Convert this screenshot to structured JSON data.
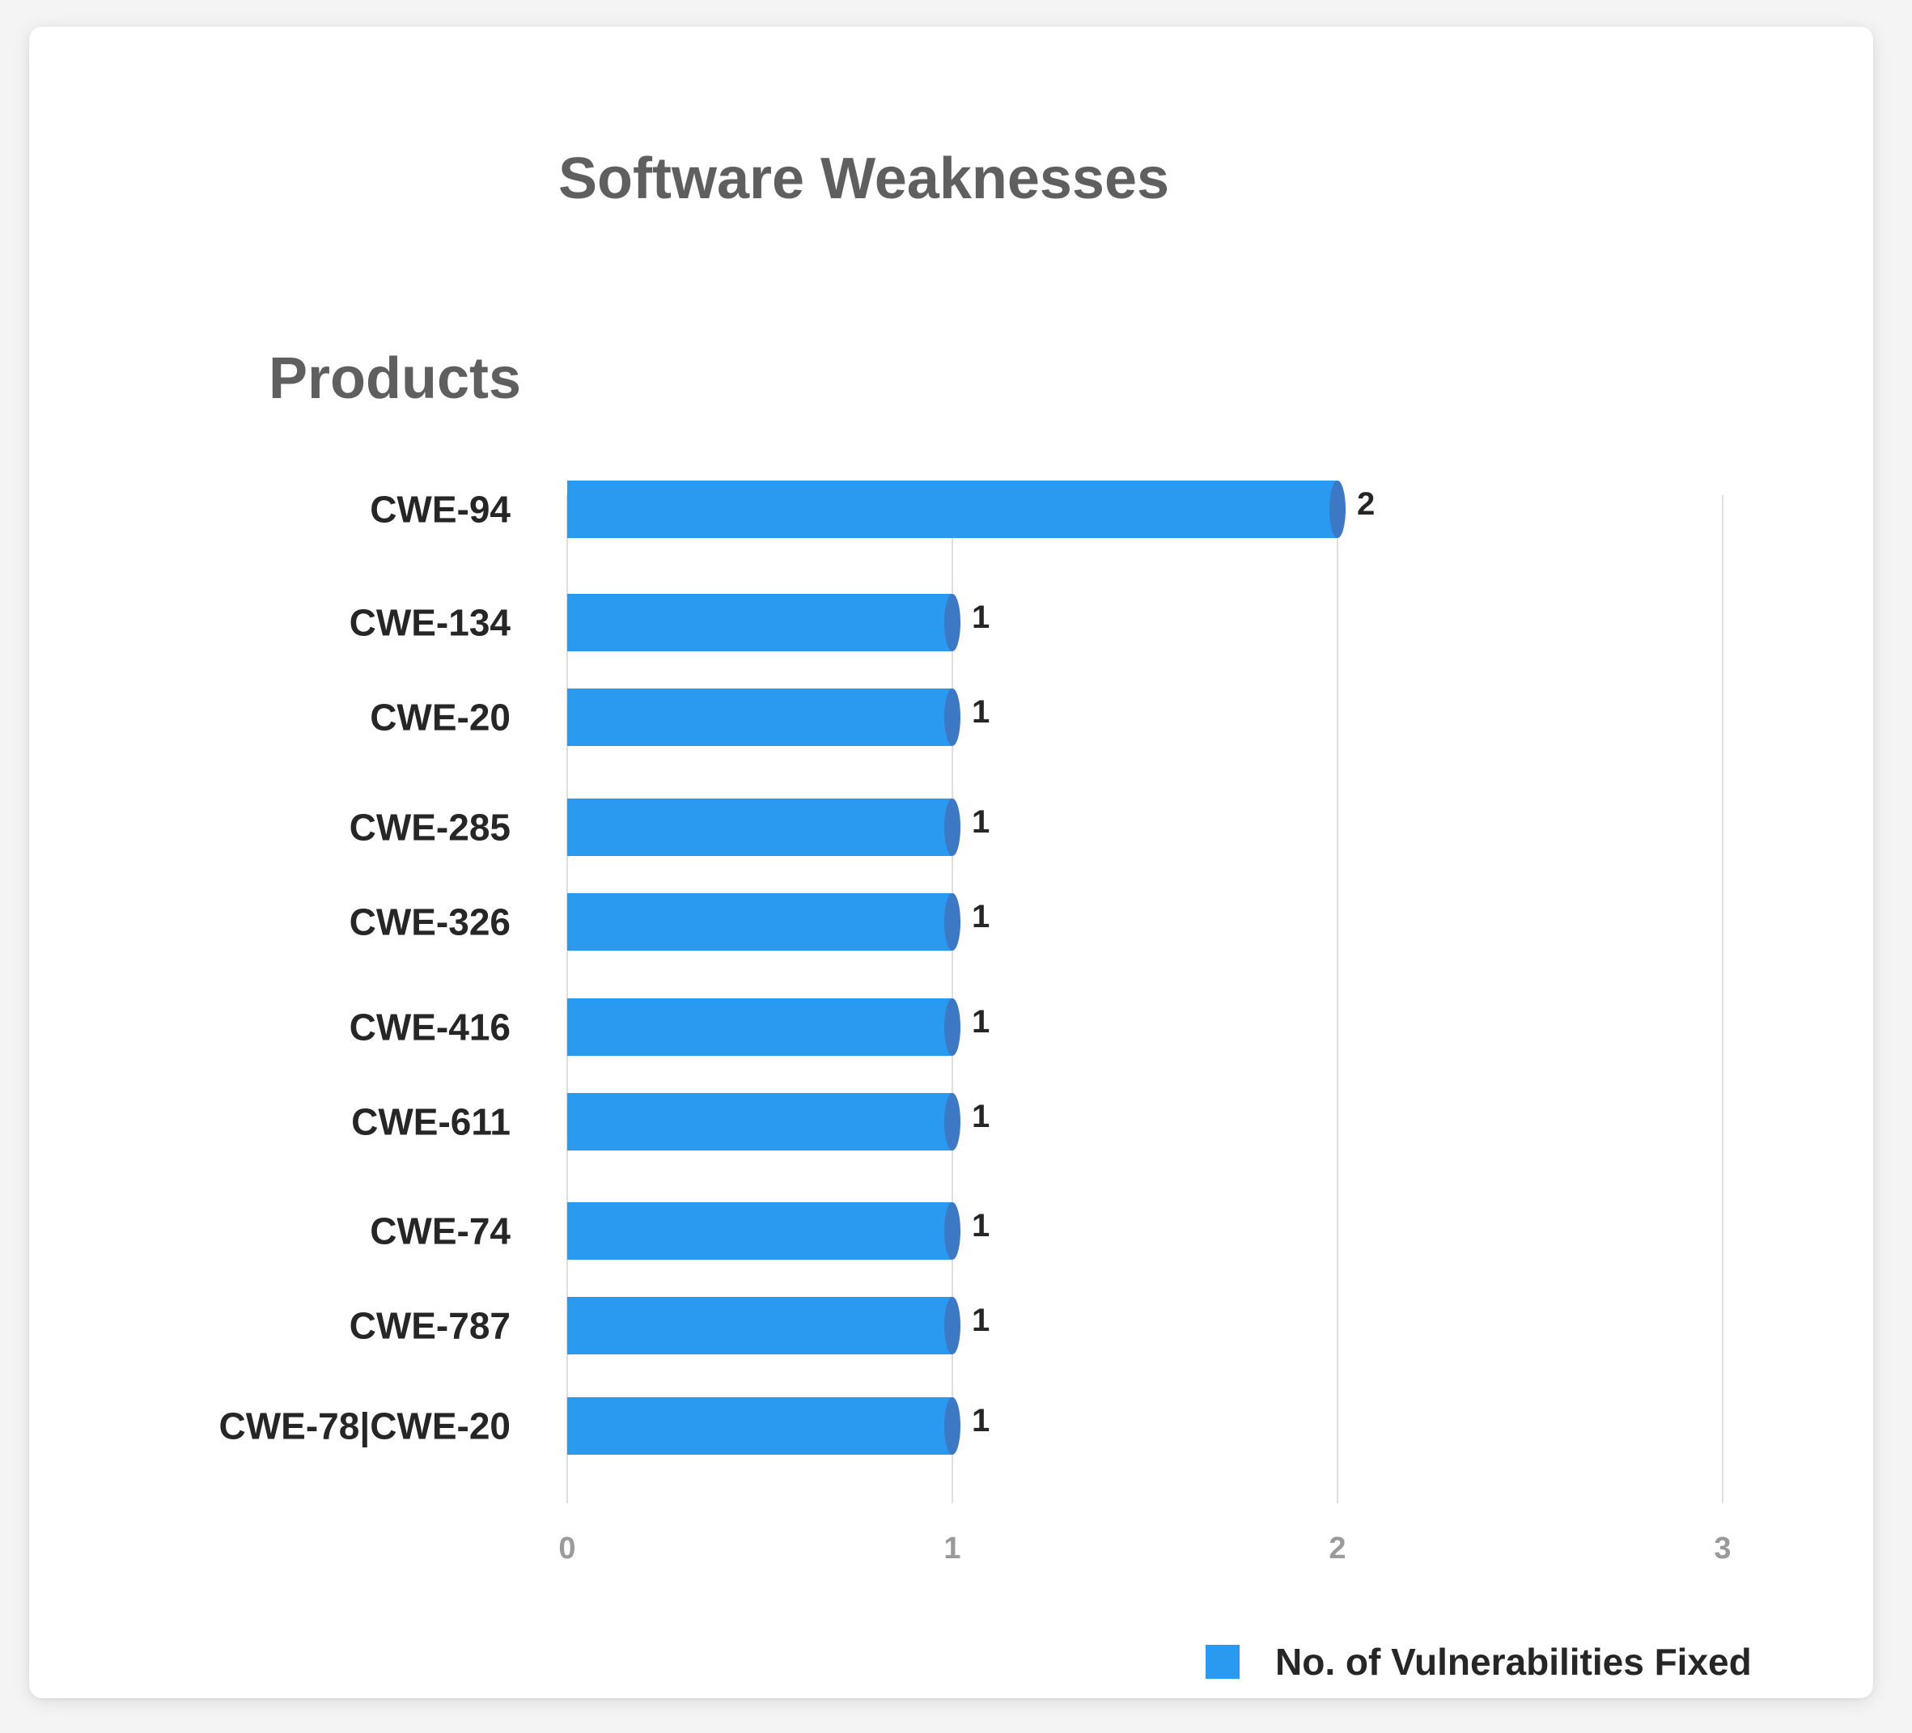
{
  "chart_data": {
    "type": "bar",
    "orientation": "horizontal",
    "title": "Software Weaknesses",
    "ylabel": "Products",
    "xlabel": "",
    "categories": [
      "CWE-94",
      "CWE-134",
      "CWE-20",
      "CWE-285",
      "CWE-326",
      "CWE-416",
      "CWE-611",
      "CWE-74",
      "CWE-787",
      "CWE-78|CWE-20"
    ],
    "series": [
      {
        "name": "No. of Vulnerabilities Fixed",
        "values": [
          2,
          1,
          1,
          1,
          1,
          1,
          1,
          1,
          1,
          1
        ],
        "color": "#2a9af0",
        "cap_color": "#3d78c4"
      }
    ],
    "xlim": [
      0,
      3
    ],
    "xticks": [
      "0",
      "1",
      "2",
      "3"
    ],
    "grid": true,
    "data_labels": true,
    "legend_position": "bottom-right"
  }
}
